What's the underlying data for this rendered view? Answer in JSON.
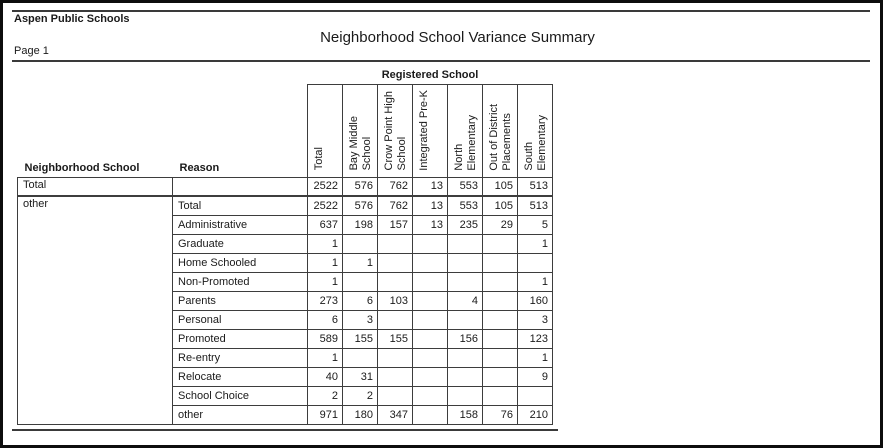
{
  "header": {
    "org": "Aspen Public Schools",
    "title": "Neighborhood School Variance Summary",
    "page_label": "Page 1"
  },
  "table": {
    "registered_school_header": "Registered School",
    "row_header_labels": [
      "Neighborhood School",
      "Reason"
    ],
    "columns": [
      "Total",
      "Bay Middle\nSchool",
      "Crow Point High\nSchool",
      "Integrated Pre-K",
      "North\nElementary",
      "Out of District\nPlacements",
      "South\nElementary"
    ],
    "total_row": {
      "neighborhood_school": "Total",
      "reason": "",
      "values": [
        "2522",
        "576",
        "762",
        "13",
        "553",
        "105",
        "513"
      ]
    },
    "groups": [
      {
        "neighborhood_school": "other",
        "rows": [
          {
            "reason": "Total",
            "values": [
              "2522",
              "576",
              "762",
              "13",
              "553",
              "105",
              "513"
            ]
          },
          {
            "reason": "Administrative",
            "values": [
              "637",
              "198",
              "157",
              "13",
              "235",
              "29",
              "5"
            ]
          },
          {
            "reason": "Graduate",
            "values": [
              "1",
              "",
              "",
              "",
              "",
              "",
              "1"
            ]
          },
          {
            "reason": "Home Schooled",
            "values": [
              "1",
              "1",
              "",
              "",
              "",
              "",
              ""
            ]
          },
          {
            "reason": "Non-Promoted",
            "values": [
              "1",
              "",
              "",
              "",
              "",
              "",
              "1"
            ]
          },
          {
            "reason": "Parents",
            "values": [
              "273",
              "6",
              "103",
              "",
              "4",
              "",
              "160"
            ]
          },
          {
            "reason": "Personal",
            "values": [
              "6",
              "3",
              "",
              "",
              "",
              "",
              "3"
            ]
          },
          {
            "reason": "Promoted",
            "values": [
              "589",
              "155",
              "155",
              "",
              "156",
              "",
              "123"
            ]
          },
          {
            "reason": "Re-entry",
            "values": [
              "1",
              "",
              "",
              "",
              "",
              "",
              "1"
            ]
          },
          {
            "reason": "Relocate",
            "values": [
              "40",
              "31",
              "",
              "",
              "",
              "",
              "9"
            ]
          },
          {
            "reason": "School Choice",
            "values": [
              "2",
              "2",
              "",
              "",
              "",
              "",
              ""
            ]
          },
          {
            "reason": "other",
            "values": [
              "971",
              "180",
              "347",
              "",
              "158",
              "76",
              "210"
            ]
          }
        ]
      }
    ]
  }
}
